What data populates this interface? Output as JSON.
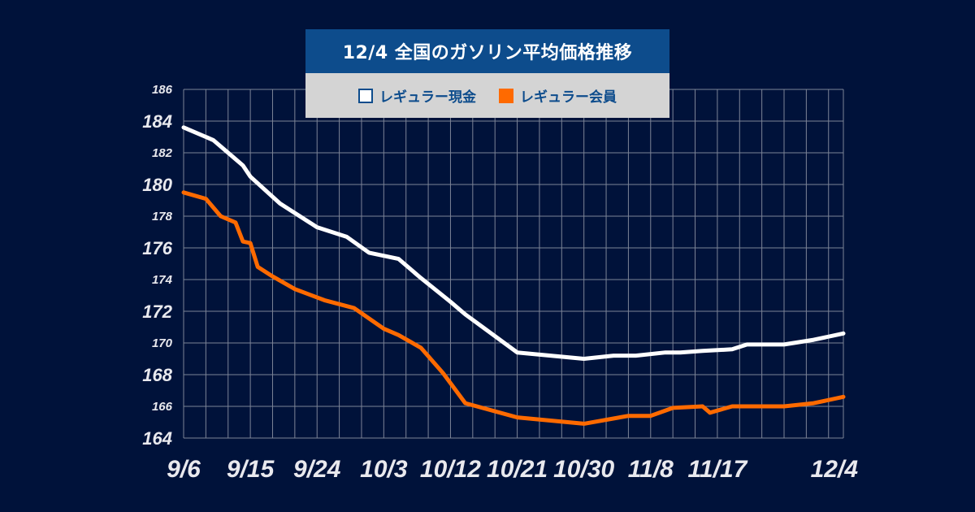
{
  "title": "12/4 全国のガソリン平均価格推移",
  "chart_data": {
    "type": "line",
    "title": "12/4 全国のガソリン平均価格推移",
    "xlabel": "",
    "ylabel": "",
    "ylim": [
      164,
      186
    ],
    "yticks": [
      164,
      166,
      168,
      170,
      172,
      174,
      176,
      178,
      180,
      182,
      184,
      186
    ],
    "xlim": [
      0,
      89
    ],
    "xticks": [
      {
        "day": 0,
        "label": "9/6"
      },
      {
        "day": 9,
        "label": "9/15"
      },
      {
        "day": 18,
        "label": "9/24"
      },
      {
        "day": 27,
        "label": "10/3"
      },
      {
        "day": 36,
        "label": "10/12"
      },
      {
        "day": 45,
        "label": "10/21"
      },
      {
        "day": 54,
        "label": "10/30"
      },
      {
        "day": 63,
        "label": "11/8"
      },
      {
        "day": 72,
        "label": "11/17"
      },
      {
        "day": 89,
        "label": "12/4"
      }
    ],
    "grid": true,
    "legend_position": "top-center",
    "series": [
      {
        "name": "レギュラー現金",
        "color": "#ffffff",
        "x": [
          0,
          4,
          7,
          8,
          9,
          13,
          18,
          22,
          25,
          29,
          32,
          36,
          38,
          45,
          54,
          58,
          61,
          65,
          67,
          70,
          74,
          76,
          81,
          85,
          89
        ],
        "values": [
          183.6,
          182.8,
          181.6,
          181.2,
          180.5,
          178.8,
          177.3,
          176.7,
          175.7,
          175.3,
          174.1,
          172.6,
          171.8,
          169.4,
          169.0,
          169.2,
          169.2,
          169.4,
          169.4,
          169.5,
          169.6,
          169.9,
          169.9,
          170.2,
          170.6
        ]
      },
      {
        "name": "レギュラー会員",
        "color": "#ff6a00",
        "x": [
          0,
          3,
          5,
          7,
          8,
          9,
          10,
          12,
          15,
          19,
          23,
          27,
          29,
          32,
          35,
          38,
          45,
          54,
          60,
          63,
          66,
          70,
          71,
          74,
          76,
          81,
          85,
          89
        ],
        "values": [
          179.5,
          179.1,
          178.0,
          177.6,
          176.4,
          176.3,
          174.8,
          174.2,
          173.4,
          172.7,
          172.2,
          170.9,
          170.5,
          169.7,
          168.1,
          166.2,
          165.3,
          164.9,
          165.4,
          165.4,
          165.9,
          166.0,
          165.6,
          166.0,
          166.0,
          166.0,
          166.2,
          166.6
        ]
      }
    ]
  }
}
